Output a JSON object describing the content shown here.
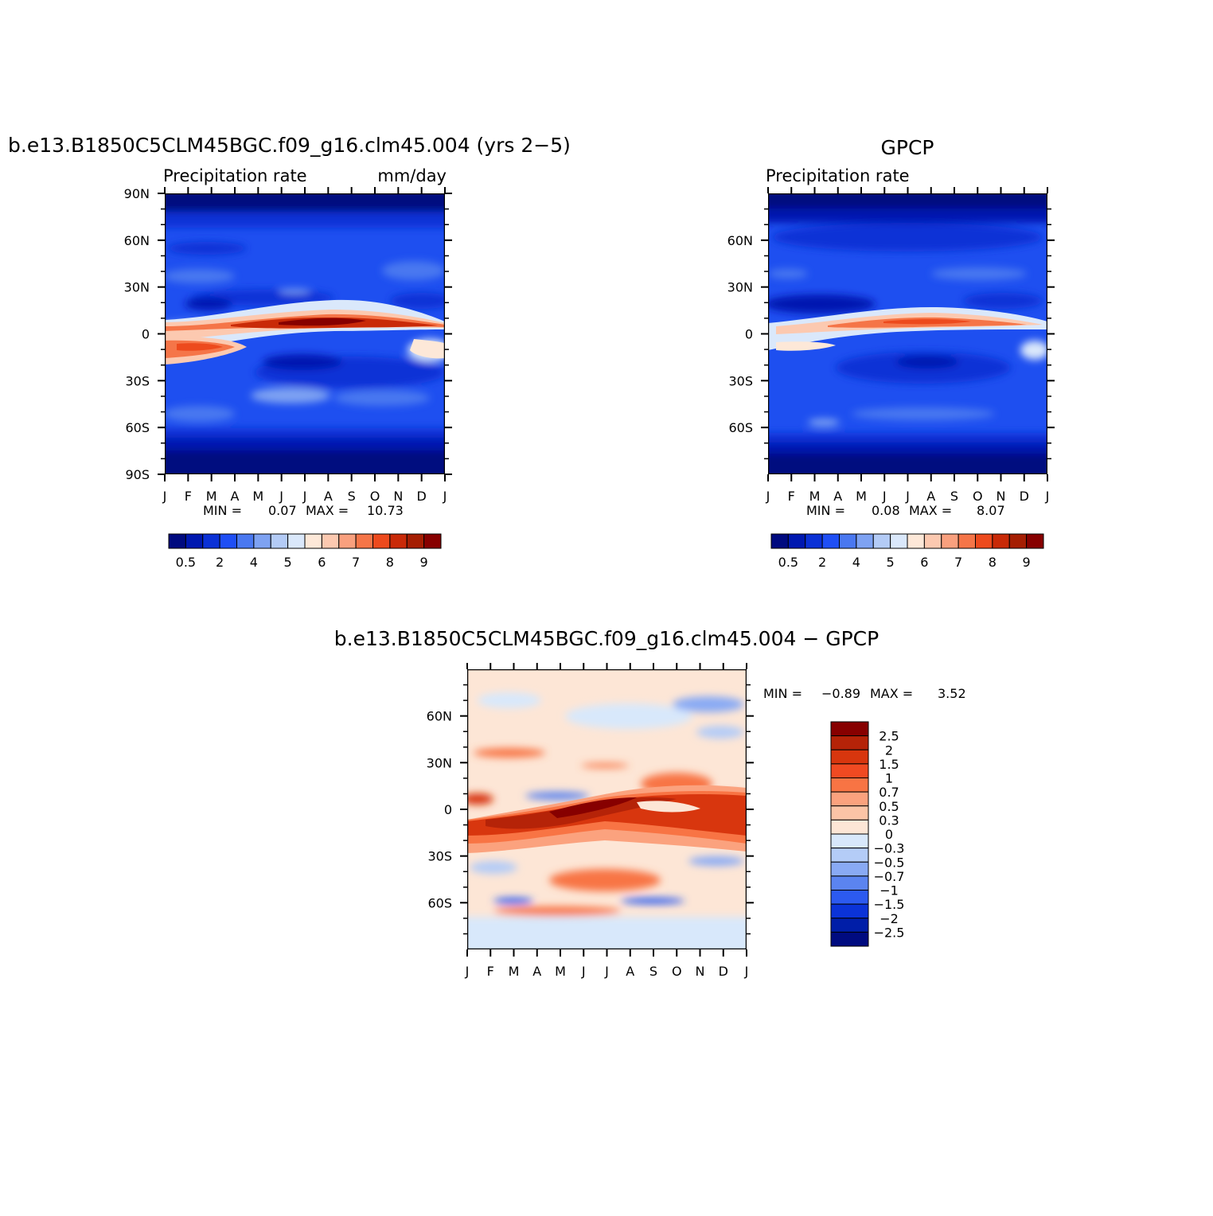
{
  "months": [
    "J",
    "F",
    "M",
    "A",
    "M",
    "J",
    "J",
    "A",
    "S",
    "O",
    "N",
    "D",
    "J"
  ],
  "chart_data": [
    {
      "type": "heatmap",
      "title": "b.e13.B1850C5CLM45BGC.f09_g16.clm45.004 (yrs 2−5)",
      "subtitle_left": "Precipitation  rate",
      "subtitle_right": "mm/day",
      "yticks": [
        "90N",
        "60N",
        "30N",
        "0",
        "30S",
        "60S",
        "90S"
      ],
      "stats": {
        "min_label": "MIN =",
        "min_value": "0.07",
        "max_label": "MAX =",
        "max_value": "10.73"
      },
      "colorbar_labels": [
        "0.5",
        "2",
        "4",
        "5",
        "6",
        "7",
        "8",
        "9"
      ],
      "colorbar_colors": [
        "#000a7f",
        "#0018b0",
        "#0b31d6",
        "#1f4ff5",
        "#4a78f0",
        "#7ea2f2",
        "#b3cbf6",
        "#dae8fb",
        "#fde8d8",
        "#fcc9b0",
        "#f9a07e",
        "#f57548",
        "#ed4a1d",
        "#c92a08",
        "#a51e03",
        "#870000"
      ],
      "ylim": [
        -90,
        90
      ],
      "xlim": [
        0,
        12
      ]
    },
    {
      "type": "heatmap",
      "title": "GPCP",
      "subtitle_left": "Precipitation  rate",
      "subtitle_right": "",
      "yticks": [
        "60N",
        "30N",
        "0",
        "30S",
        "60S"
      ],
      "stats": {
        "min_label": "MIN =",
        "min_value": "0.08",
        "max_label": "MAX =",
        "max_value": "8.07"
      },
      "colorbar_labels": [
        "0.5",
        "2",
        "4",
        "5",
        "6",
        "7",
        "8",
        "9"
      ],
      "colorbar_colors": [
        "#000a7f",
        "#0018b0",
        "#0b31d6",
        "#1f4ff5",
        "#4a78f0",
        "#7ea2f2",
        "#b3cbf6",
        "#dae8fb",
        "#fde8d8",
        "#fcc9b0",
        "#f9a07e",
        "#f57548",
        "#ed4a1d",
        "#c92a08",
        "#a51e03",
        "#870000"
      ],
      "ylim": [
        -90,
        90
      ],
      "xlim": [
        0,
        12
      ]
    },
    {
      "type": "heatmap",
      "title": "b.e13.B1850C5CLM45BGC.f09_g16.clm45.004  −  GPCP",
      "yticks": [
        "60N",
        "30N",
        "0",
        "30S",
        "60S"
      ],
      "stats": {
        "min_label": "MIN =",
        "min_value": "−0.89",
        "max_label": "MAX =",
        "max_value": "3.52"
      },
      "colorbar_labels": [
        "2.5",
        "2",
        "1.5",
        "1",
        "0.7",
        "0.5",
        "0.3",
        "0",
        "−0.3",
        "−0.5",
        "−0.7",
        "−1",
        "−1.5",
        "−2",
        "−2.5"
      ],
      "colorbar_colors": [
        "#870000",
        "#b52308",
        "#d8360e",
        "#f04a22",
        "#f87444",
        "#fba27e",
        "#fcc4a6",
        "#fde6d6",
        "#d8e8fb",
        "#b4ccf7",
        "#89aaf4",
        "#5b84f0",
        "#2c5af0",
        "#0b33d8",
        "#001ea8",
        "#000b80"
      ],
      "ylim": [
        -90,
        90
      ],
      "xlim": [
        0,
        12
      ]
    }
  ]
}
